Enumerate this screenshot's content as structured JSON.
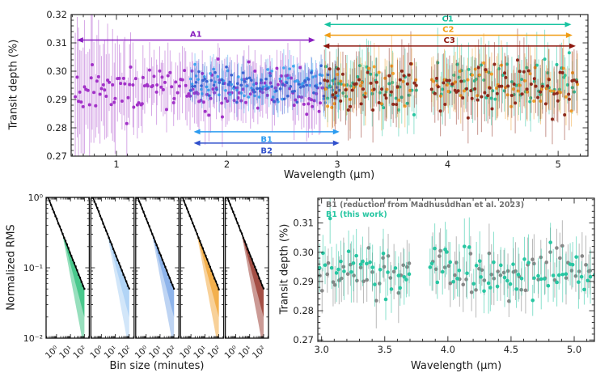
{
  "figure": {
    "background": "#ffffff"
  },
  "chart_data": [
    {
      "id": "transmission-spectrum",
      "type": "scatter",
      "xlabel": "Wavelength (μm)",
      "ylabel": "Transit depth (%)",
      "xlim": [
        0.59,
        5.27
      ],
      "ylim": [
        0.27,
        0.32
      ],
      "xticks": [
        1,
        2,
        3,
        4,
        5
      ],
      "yticks": [
        0.27,
        0.28,
        0.29,
        0.3,
        0.31,
        0.32
      ],
      "xminor": 0.1,
      "yminor": 0.002,
      "xtick_decimals": 0,
      "ytick_decimals": 2,
      "gap": [
        3.72,
        3.85
      ],
      "series": [
        {
          "name": "A1",
          "color": "#a232c8",
          "bar_color": "rgba(163,60,200,0.45)",
          "x_range": [
            0.62,
            2.87
          ],
          "n_points": 160,
          "baseline": 0.2936,
          "scatter": 0.0038,
          "err_mean": 0.0075,
          "err_spread": 0.0035,
          "err_boost": {
            "below": 1.25,
            "factor": 2.2
          },
          "marker_radius": 2.0,
          "seed": 11
        },
        {
          "name": "B1",
          "color": "#41a7f0",
          "bar_color": "rgba(65,167,240,0.5)",
          "x_range": [
            1.66,
            3.02
          ],
          "n_points": 72,
          "baseline": 0.2954,
          "scatter": 0.0026,
          "err_mean": 0.0045,
          "err_spread": 0.0018,
          "marker_radius": 1.8,
          "seed": 22
        },
        {
          "name": "B2",
          "color": "#3a63d2",
          "bar_color": "rgba(58,99,210,0.5)",
          "x_range": [
            1.66,
            3.02
          ],
          "n_points": 72,
          "baseline": 0.2948,
          "scatter": 0.0026,
          "err_mean": 0.0045,
          "err_spread": 0.0018,
          "marker_radius": 1.8,
          "seed": 33
        },
        {
          "name": "C1",
          "color": "#27c6a2",
          "bar_color": "rgba(39,198,162,0.5)",
          "x_range": [
            2.88,
            5.18
          ],
          "n_points": 112,
          "baseline": 0.295,
          "scatter": 0.004,
          "err_mean": 0.008,
          "err_spread": 0.0032,
          "marker_radius": 2.0,
          "seed": 44
        },
        {
          "name": "C2",
          "color": "#f0a02c",
          "bar_color": "rgba(240,160,44,0.5)",
          "x_range": [
            2.88,
            5.18
          ],
          "n_points": 82,
          "baseline": 0.2954,
          "scatter": 0.0038,
          "err_mean": 0.0072,
          "err_spread": 0.003,
          "marker_radius": 2.0,
          "seed": 55
        },
        {
          "name": "C3",
          "color": "#8e2a1c",
          "bar_color": "rgba(142,42,28,0.5)",
          "x_range": [
            2.88,
            5.18
          ],
          "n_points": 112,
          "baseline": 0.2946,
          "scatter": 0.004,
          "err_mean": 0.008,
          "err_spread": 0.0032,
          "marker_radius": 2.0,
          "seed": 66
        }
      ],
      "annotations": [
        {
          "label": "A1",
          "color": "#8a1fc0",
          "x_start": 0.64,
          "x_end": 2.8,
          "y": 0.311,
          "label_below": false
        },
        {
          "label": "C1",
          "color": "#17c3a0",
          "x_start": 2.88,
          "x_end": 5.12,
          "y": 0.3165,
          "label_below": false
        },
        {
          "label": "C2",
          "color": "#f09c14",
          "x_start": 2.88,
          "x_end": 5.13,
          "y": 0.3127,
          "label_below": false
        },
        {
          "label": "C3",
          "color": "#8e180e",
          "x_start": 2.87,
          "x_end": 5.16,
          "y": 0.3089,
          "label_below": false
        },
        {
          "label": "B1",
          "color": "#2b9bf0",
          "x_start": 1.7,
          "x_end": 3.02,
          "y": 0.2786,
          "label_below": true
        },
        {
          "label": "B2",
          "color": "#3050cc",
          "x_start": 1.7,
          "x_end": 3.02,
          "y": 0.2746,
          "label_below": true
        }
      ]
    },
    {
      "id": "rms-binning",
      "type": "line",
      "xlabel": "Bin size (minutes)",
      "ylabel": "Normalized RMS",
      "xscale": "log",
      "yscale": "log",
      "xlim_log10": [
        -0.75,
        2.35
      ],
      "ylim": [
        0.01,
        1
      ],
      "xtick_values": [
        1,
        10,
        100
      ],
      "xtick_labels": [
        "10⁰",
        "10¹",
        "10²"
      ],
      "ytick_values": [
        1,
        0.1,
        0.01
      ],
      "ytick_labels": [
        "10⁰",
        "10⁻¹",
        "10⁻²"
      ],
      "black_line": {
        "color": "#000000",
        "start_bin": 0.25,
        "end_bin": 100,
        "slope": -0.5,
        "end_rms": 0.05
      },
      "fan": {
        "start_bin": 2.5,
        "outer_exp": -0.55,
        "inner_exp": -0.25
      },
      "panels": [
        {
          "fan_color": "#2fc07c",
          "seed": 301
        },
        {
          "fan_color": "#a6cdf4",
          "seed": 302
        },
        {
          "fan_color": "#7da9e8",
          "seed": 303
        },
        {
          "fan_color": "#f2a434",
          "seed": 304
        },
        {
          "fan_color": "#97352b",
          "seed": 305
        }
      ]
    },
    {
      "id": "b1-comparison",
      "type": "scatter",
      "xlabel": "Wavelength (μm)",
      "ylabel": "Transit depth (%)",
      "xlim": [
        2.97,
        5.16
      ],
      "ylim": [
        0.2695,
        0.3185
      ],
      "xticks": [
        3.0,
        3.5,
        4.0,
        4.5,
        5.0
      ],
      "yticks": [
        0.27,
        0.28,
        0.29,
        0.3,
        0.31
      ],
      "xminor": 0.1,
      "yminor": 0.002,
      "xtick_decimals": 1,
      "ytick_decimals": 2,
      "gap": [
        3.72,
        3.85
      ],
      "legend": [
        {
          "label": "B1 (reduction from Madhusudhan et al. 2023)",
          "color": "#6f6f6f"
        },
        {
          "label": "B1 (this work)",
          "color": "#27c6a2"
        }
      ],
      "series": [
        {
          "name": "B1-madhusudhan-2023",
          "color": "#878787",
          "bar_color": "rgba(125,125,125,0.55)",
          "x_range": [
            2.9,
            5.17
          ],
          "n_points": 92,
          "baseline": 0.2942,
          "scatter": 0.0042,
          "err_mean": 0.0066,
          "err_spread": 0.0028,
          "marker_radius": 2.3,
          "seed": 77
        },
        {
          "name": "B1-this-work",
          "color": "#27c6a2",
          "bar_color": "rgba(39,198,162,0.55)",
          "x_range": [
            2.9,
            5.17
          ],
          "n_points": 92,
          "baseline": 0.294,
          "scatter": 0.0042,
          "err_mean": 0.0066,
          "err_spread": 0.0028,
          "marker_radius": 2.3,
          "seed": 88
        }
      ]
    }
  ]
}
